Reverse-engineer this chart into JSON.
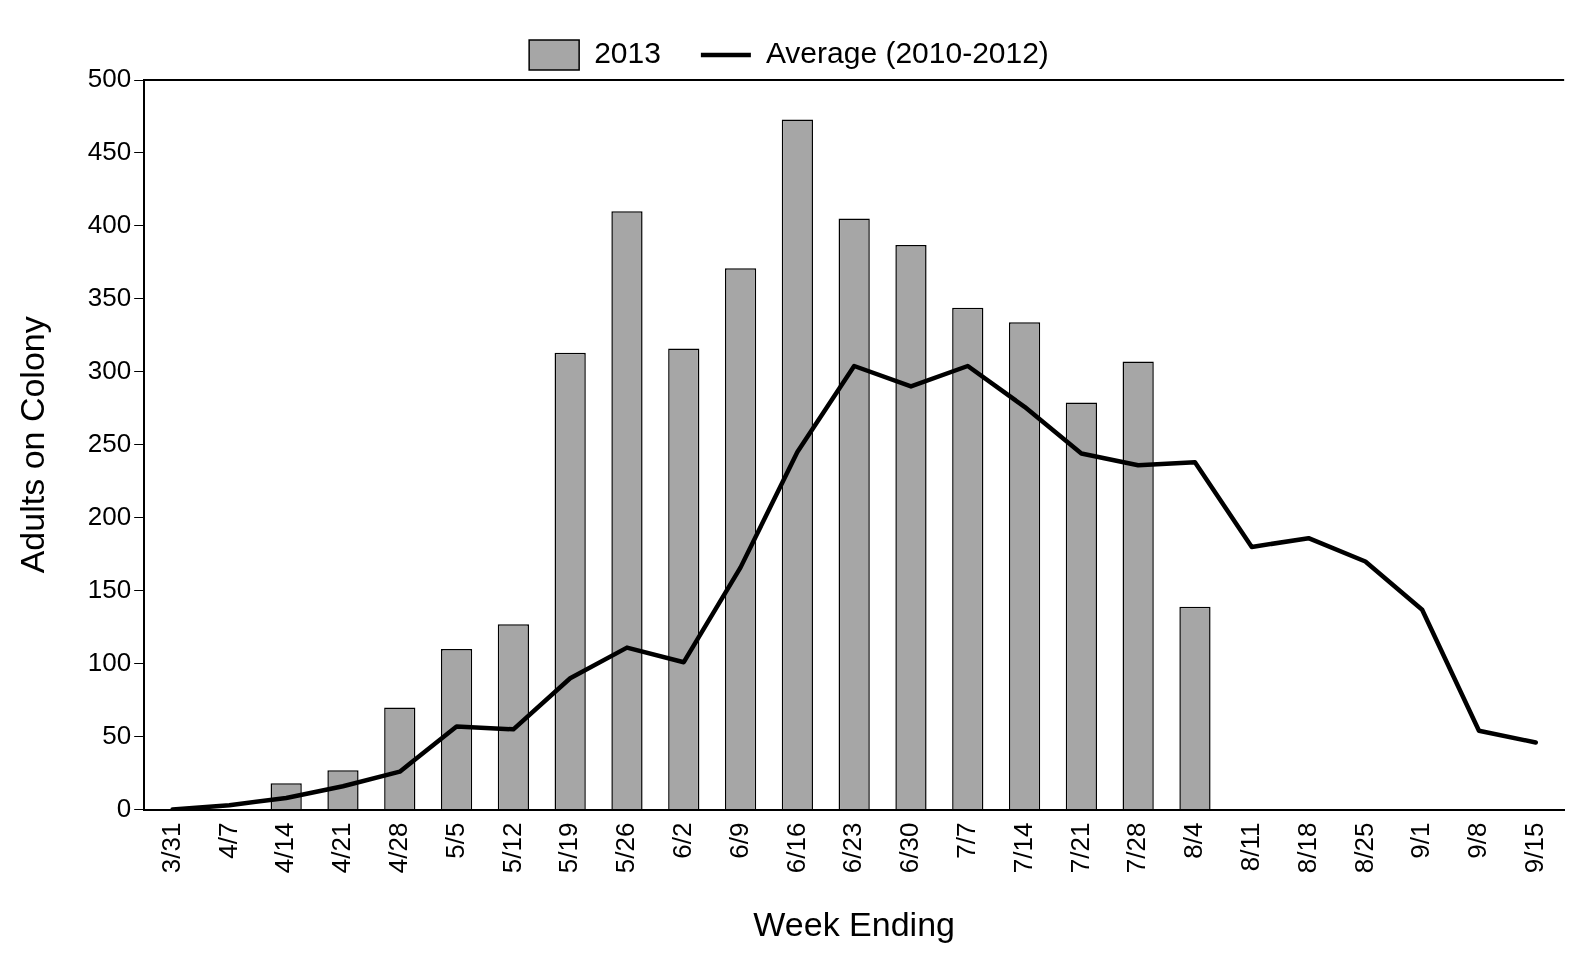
{
  "chart_data": {
    "type": "bar",
    "xlabel": "Week Ending",
    "ylabel": "Adults on Colony",
    "categories": [
      "3/31",
      "4/7",
      "4/14",
      "4/21",
      "4/28",
      "5/5",
      "5/12",
      "5/19",
      "5/26",
      "6/2",
      "6/9",
      "6/16",
      "6/23",
      "6/30",
      "7/7",
      "7/14",
      "7/21",
      "7/28",
      "8/4",
      "8/11",
      "8/18",
      "8/25",
      "9/1",
      "9/8",
      "9/15"
    ],
    "series": [
      {
        "name": "2013",
        "color": "#a6a6a6",
        "values": [
          null,
          null,
          18,
          27,
          70,
          110,
          127,
          313,
          410,
          316,
          371,
          473,
          405,
          387,
          344,
          334,
          279,
          307,
          139,
          null,
          null,
          null,
          null,
          null,
          null
        ]
      },
      {
        "name": "Average (2010-2012)",
        "type": "line",
        "color": "#000000",
        "values": [
          0,
          3,
          8,
          16,
          26,
          57,
          55,
          90,
          111,
          101,
          166,
          245,
          304,
          290,
          304,
          276,
          244,
          236,
          238,
          180,
          186,
          170,
          137,
          54,
          46
        ]
      }
    ],
    "ylim": [
      0,
      500
    ],
    "yticks": [
      0,
      50,
      100,
      150,
      200,
      250,
      300,
      350,
      400,
      450,
      500
    ],
    "grid": false,
    "legend": "top",
    "marker": "none",
    "line_style": "solid"
  }
}
